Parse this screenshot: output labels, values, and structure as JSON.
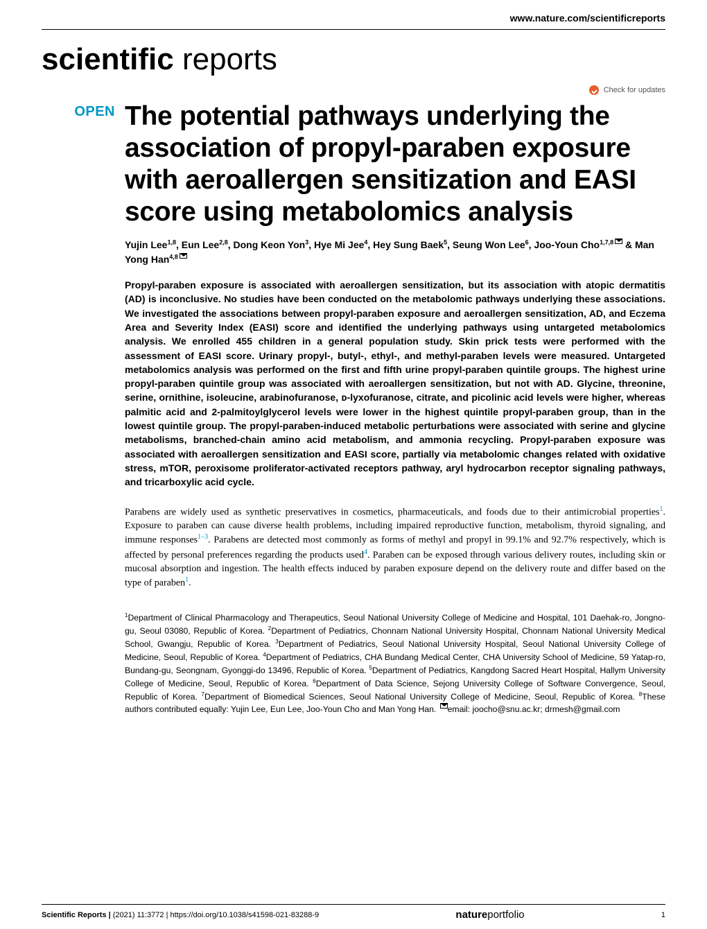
{
  "header": {
    "url": "www.nature.com/scientificreports",
    "journal_bold": "scientific",
    "journal_light": " reports",
    "check_updates": "Check for updates",
    "open_badge": "OPEN"
  },
  "article": {
    "title": "The potential pathways underlying the association of propyl-paraben exposure with aeroallergen sensitization and EASI score using metabolomics analysis",
    "authors_html": "Yujin Lee<sup>1,8</sup>, Eun Lee<sup>2,8</sup>, Dong Keon Yon<sup>3</sup>, Hye Mi Jee<sup>4</sup>, Hey Sung Baek<sup>5</sup>, Seung Won Lee<sup>6</sup>, Joo-Youn Cho<sup>1,7,8</sup><span class=\"envelope\"></span> & Man Yong Han<sup>4,8</sup><span class=\"envelope\"></span>",
    "abstract": "Propyl-paraben exposure is associated with aeroallergen sensitization, but its association with atopic dermatitis (AD) is inconclusive. No studies have been conducted on the metabolomic pathways underlying these associations. We investigated the associations between propyl-paraben exposure and aeroallergen sensitization, AD, and Eczema Area and Severity Index (EASI) score and identified the underlying pathways using untargeted metabolomics analysis. We enrolled 455 children in a general population study. Skin prick tests were performed with the assessment of EASI score. Urinary propyl-, butyl-, ethyl-, and methyl-paraben levels were measured. Untargeted metabolomics analysis was performed on the first and fifth urine propyl-paraben quintile groups. The highest urine propyl-paraben quintile group was associated with aeroallergen sensitization, but not with AD. Glycine, threonine, serine, ornithine, isoleucine, arabinofuranose, ᴅ-lyxofuranose, citrate, and picolinic acid levels were higher, whereas palmitic acid and 2-palmitoylglycerol levels were lower in the highest quintile propyl-paraben group, than in the lowest quintile group. The propyl-paraben-induced metabolic perturbations were associated with serine and glycine metabolisms, branched-chain amino acid metabolism, and ammonia recycling. Propyl-paraben exposure was associated with aeroallergen sensitization and EASI score, partially via metabolomic changes related with oxidative stress, mTOR, peroxisome proliferator-activated receptors pathway, aryl hydrocarbon receptor signaling pathways, and tricarboxylic acid cycle.",
    "intro": "Parabens are widely used as synthetic preservatives in cosmetics, pharmaceuticals, and foods due to their antimicrobial properties<span class=\"ref\">1</span>. Exposure to paraben can cause diverse health problems, including impaired reproductive function, metabolism, thyroid signaling, and immune responses<span class=\"ref\">1–3</span>. Parabens are detected most commonly as forms of methyl and propyl in 99.1% and 92.7% respectively, which is affected by personal preferences regarding the products used<span class=\"ref\">4</span>. Paraben can be exposed through various delivery routes, including skin or mucosal absorption and ingestion. The health effects induced by paraben exposure depend on the delivery route and differ based on the type of paraben<span class=\"ref\">1</span>.",
    "affiliations": "<sup>1</sup>Department of Clinical Pharmacology and Therapeutics, Seoul National University College of Medicine and Hospital, 101 Daehak-ro, Jongno-gu, Seoul 03080, Republic of Korea. <sup>2</sup>Department of Pediatrics, Chonnam National University Hospital, Chonnam National University Medical School, Gwangju, Republic of Korea. <sup>3</sup>Department of Pediatrics, Seoul National University Hospital, Seoul National University College of Medicine, Seoul, Republic of Korea. <sup>4</sup>Department of Pediatrics, CHA Bundang Medical Center, CHA University School of Medicine, 59 Yatap-ro, Bundang-gu, Seongnam, Gyonggi-do 13496, Republic of Korea. <sup>5</sup>Department of Pediatrics, Kangdong Sacred Heart Hospital, Hallym University College of Medicine, Seoul, Republic of Korea. <sup>6</sup>Department of Data Science, Sejong University College of Software Convergence, Seoul, Republic of Korea. <sup>7</sup>Department of Biomedical Sciences, Seoul National University College of Medicine, Seoul, Republic of Korea. <sup>8</sup>These authors contributed equally: Yujin Lee, Eun Lee, Joo-Youn Cho and Man Yong Han. <span class=\"envelope\"></span>email: joocho@snu.ac.kr; drmesh@gmail.com"
  },
  "footer": {
    "journal": "Scientific Reports |",
    "citation": "        (2021) 11:3772  |",
    "doi": "https://doi.org/10.1038/s41598-021-83288-9",
    "publisher_bold": "nature",
    "publisher_light": "portfolio",
    "page_num": "1"
  },
  "colors": {
    "accent_teal": "#0097c4",
    "check_orange": "#e85d2a",
    "text_black": "#000000",
    "background": "#ffffff"
  },
  "typography": {
    "title_fontsize": 39,
    "title_weight": 900,
    "abstract_fontsize": 14,
    "body_fontsize": 14,
    "affil_fontsize": 12.2,
    "badge_fontsize": 20,
    "logo_fontsize": 44
  }
}
